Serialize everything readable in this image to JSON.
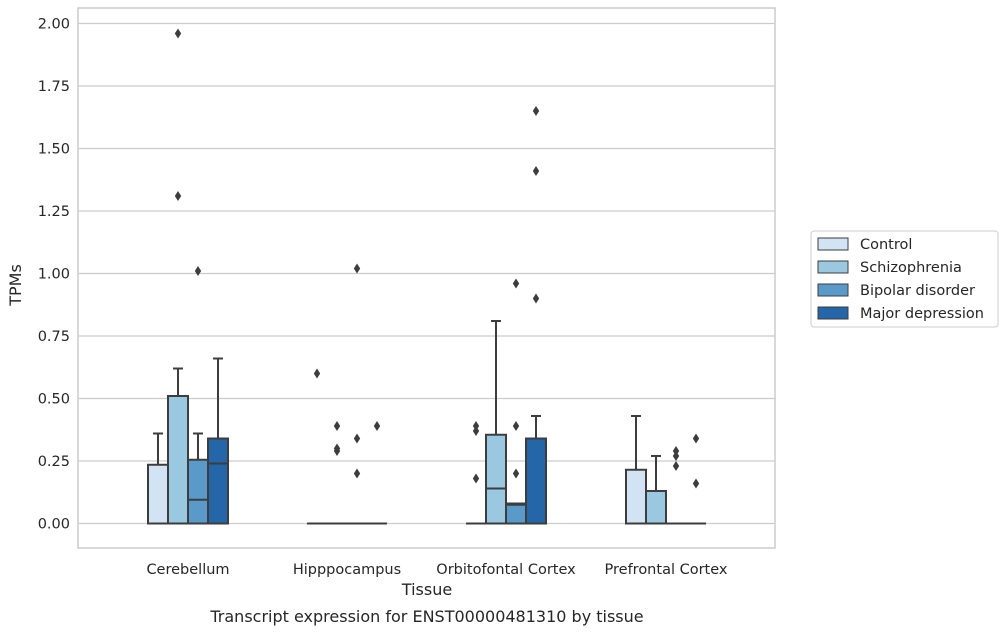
{
  "chart_data": {
    "type": "box",
    "title": "",
    "caption": "Transcript expression for ENST00000481310 by tissue",
    "xlabel": "Tissue",
    "ylabel": "TPMs",
    "ylim": [
      -0.1,
      2.06
    ],
    "yticks": [
      0.0,
      0.25,
      0.5,
      0.75,
      1.0,
      1.25,
      1.5,
      1.75,
      2.0
    ],
    "ytick_labels": [
      "0.00",
      "0.25",
      "0.50",
      "0.75",
      "1.00",
      "1.25",
      "1.50",
      "1.75",
      "2.00"
    ],
    "grid": "horizontal",
    "legend_position": "right",
    "categories": [
      "Cerebellum",
      "Hipppocampus",
      "Orbitofontal Cortex",
      "Prefrontal Cortex"
    ],
    "series": [
      {
        "name": "Control",
        "color": "#d2e3f3",
        "boxes": [
          {
            "q1": 0.0,
            "median": 0.0,
            "q3": 0.235,
            "whisker_low": 0.0,
            "whisker_high": 0.36,
            "outliers": []
          },
          {
            "q1": 0.0,
            "median": 0.0,
            "q3": 0.0,
            "whisker_low": 0.0,
            "whisker_high": 0.0,
            "outliers": [
              0.6
            ]
          },
          {
            "q1": 0.0,
            "median": 0.0,
            "q3": 0.0,
            "whisker_low": 0.0,
            "whisker_high": 0.0,
            "outliers": [
              0.18,
              0.37,
              0.39
            ]
          },
          {
            "q1": 0.0,
            "median": 0.0,
            "q3": 0.215,
            "whisker_low": 0.0,
            "whisker_high": 0.43,
            "outliers": []
          }
        ]
      },
      {
        "name": "Schizophrenia",
        "color": "#9ac8e0",
        "boxes": [
          {
            "q1": 0.0,
            "median": 0.0,
            "q3": 0.51,
            "whisker_low": 0.0,
            "whisker_high": 0.62,
            "outliers": [
              1.31,
              1.96
            ]
          },
          {
            "q1": 0.0,
            "median": 0.0,
            "q3": 0.0,
            "whisker_low": 0.0,
            "whisker_high": 0.0,
            "outliers": [
              0.29,
              0.3,
              0.39
            ]
          },
          {
            "q1": 0.0,
            "median": 0.14,
            "q3": 0.355,
            "whisker_low": 0.0,
            "whisker_high": 0.81,
            "outliers": []
          },
          {
            "q1": 0.0,
            "median": 0.0,
            "q3": 0.13,
            "whisker_low": 0.0,
            "whisker_high": 0.27,
            "outliers": []
          }
        ]
      },
      {
        "name": "Bipolar disorder",
        "color": "#5a9ac9",
        "boxes": [
          {
            "q1": 0.0,
            "median": 0.095,
            "q3": 0.255,
            "whisker_low": 0.0,
            "whisker_high": 0.36,
            "outliers": [
              1.01
            ]
          },
          {
            "q1": 0.0,
            "median": 0.0,
            "q3": 0.0,
            "whisker_low": 0.0,
            "whisker_high": 0.0,
            "outliers": [
              0.2,
              0.34,
              1.02
            ]
          },
          {
            "q1": 0.0,
            "median": 0.075,
            "q3": 0.08,
            "whisker_low": 0.0,
            "whisker_high": 0.08,
            "outliers": [
              0.2,
              0.39,
              0.96
            ]
          },
          {
            "q1": 0.0,
            "median": 0.0,
            "q3": 0.0,
            "whisker_low": 0.0,
            "whisker_high": 0.0,
            "outliers": [
              0.23,
              0.27,
              0.29
            ]
          }
        ]
      },
      {
        "name": "Major depression",
        "color": "#2466a8",
        "boxes": [
          {
            "q1": 0.0,
            "median": 0.24,
            "q3": 0.34,
            "whisker_low": 0.0,
            "whisker_high": 0.66,
            "outliers": []
          },
          {
            "q1": 0.0,
            "median": 0.0,
            "q3": 0.0,
            "whisker_low": 0.0,
            "whisker_high": 0.0,
            "outliers": [
              0.39
            ]
          },
          {
            "q1": 0.0,
            "median": 0.0,
            "q3": 0.34,
            "whisker_low": 0.0,
            "whisker_high": 0.43,
            "outliers": [
              0.9,
              1.41,
              1.65
            ]
          },
          {
            "q1": 0.0,
            "median": 0.0,
            "q3": 0.0,
            "whisker_low": 0.0,
            "whisker_high": 0.0,
            "outliers": [
              0.16,
              0.34
            ]
          }
        ]
      }
    ]
  }
}
